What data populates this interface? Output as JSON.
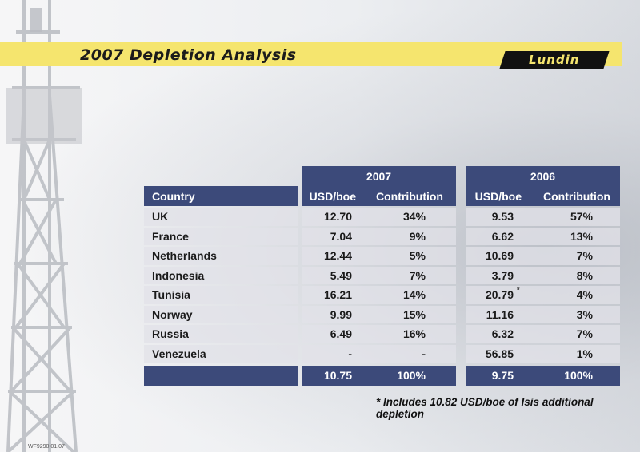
{
  "slide": {
    "title": "2007 Depletion Analysis",
    "logo": "Lundin",
    "footnote": "* Includes 10.82 USD/boe of Isis additional depletion",
    "code": "WF9290 01.07"
  },
  "table": {
    "year_2007": "2007",
    "year_2006": "2006",
    "col_country": "Country",
    "col_usd": "USD/boe",
    "col_contribution": "Contribution",
    "rows": [
      {
        "country": "UK",
        "usd07": "12.70",
        "con07": "34%",
        "usd06": "9.53",
        "con06": "57%"
      },
      {
        "country": "France",
        "usd07": "7.04",
        "con07": "9%",
        "usd06": "6.62",
        "con06": "13%"
      },
      {
        "country": "Netherlands",
        "usd07": "12.44",
        "con07": "5%",
        "usd06": "10.69",
        "con06": "7%"
      },
      {
        "country": "Indonesia",
        "usd07": "5.49",
        "con07": "7%",
        "usd06": "3.79",
        "con06": "8%"
      },
      {
        "country": "Tunisia",
        "usd07": "16.21",
        "con07": "14%",
        "usd06": "20.79",
        "con06": "4%",
        "mark06": "*"
      },
      {
        "country": "Norway",
        "usd07": "9.99",
        "con07": "15%",
        "usd06": "11.16",
        "con06": "3%"
      },
      {
        "country": "Russia",
        "usd07": "6.49",
        "con07": "16%",
        "usd06": "6.32",
        "con06": "7%"
      },
      {
        "country": "Venezuela",
        "usd07": "-",
        "con07": "-",
        "usd06": "56.85",
        "con06": "1%"
      }
    ],
    "total": {
      "usd07": "10.75",
      "con07": "100%",
      "usd06": "9.75",
      "con06": "100%"
    }
  },
  "colors": {
    "header": "#3c4a7a",
    "titlebar": "#f5e56e"
  }
}
